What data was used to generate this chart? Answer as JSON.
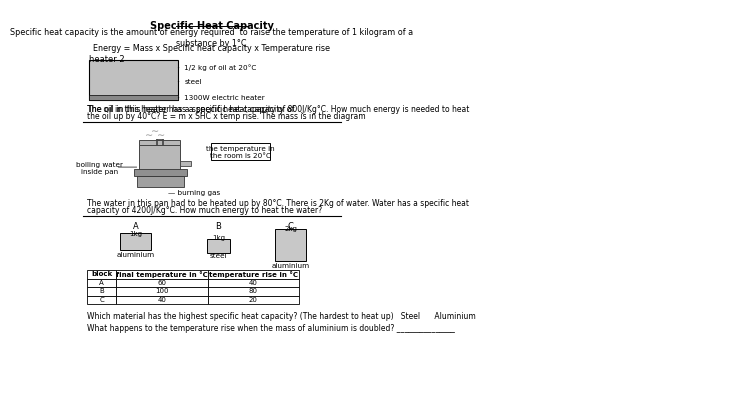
{
  "title": "Specific Heat Capacity",
  "intro_text": "Specific heat capacity is the amount of energy required  to raise the temperature of 1 kilogram of a\nsubstance by 1°C",
  "formula": "Energy = Mass x Specific heat capacity x Temperature rise",
  "heater_label": "heater 2",
  "heater_annotations": [
    "1/2 kg of oil at 20°C",
    "steel",
    "1300W electric heater"
  ],
  "heater_q_prefix": "The oil in this heater has a specific heat capacity of ",
  "heater_q_bold1": "800J/Kg°C",
  "heater_q_mid": ". How much energy is needed to heat\nthe oil up by ",
  "heater_q_bold2": "40°C",
  "heater_q_suffix": "? E = m x SHC x temp rise. The mass is in the diagram",
  "pan_label1": "boiling water\ninside pan",
  "pan_label2": "the temperature in\nthe room is 20°C",
  "pan_label3": "burning gas",
  "pan_q": "The water in this pan had to be heated up by 80°C. There is 2Kg of water. Water has a specific heat\ncapacity of 4200J/Kg°C. How much energy to heat the water?",
  "block_labels_top": [
    "A",
    "B",
    "C"
  ],
  "block_weights": [
    "1kg",
    "1kg",
    "2kg"
  ],
  "block_materials": [
    "aluminium",
    "steel",
    "aluminium"
  ],
  "table_headers": [
    "block",
    "final temperature in °C",
    "temperature rise in °C"
  ],
  "table_data": [
    [
      "A",
      "60",
      "40"
    ],
    [
      "B",
      "100",
      "80"
    ],
    [
      "C",
      "40",
      "20"
    ]
  ],
  "question1": "Which material has the highest specific heat capacity? (The hardest to heat up)   Steel      Aluminium",
  "question2": "What happens to the temperature rise when the mass of aluminium is doubled? _______________",
  "bg_color": "#ffffff",
  "gray_box": "#c0c0c0",
  "dark_gray": "#888888",
  "block_gray": "#c8c8c8"
}
